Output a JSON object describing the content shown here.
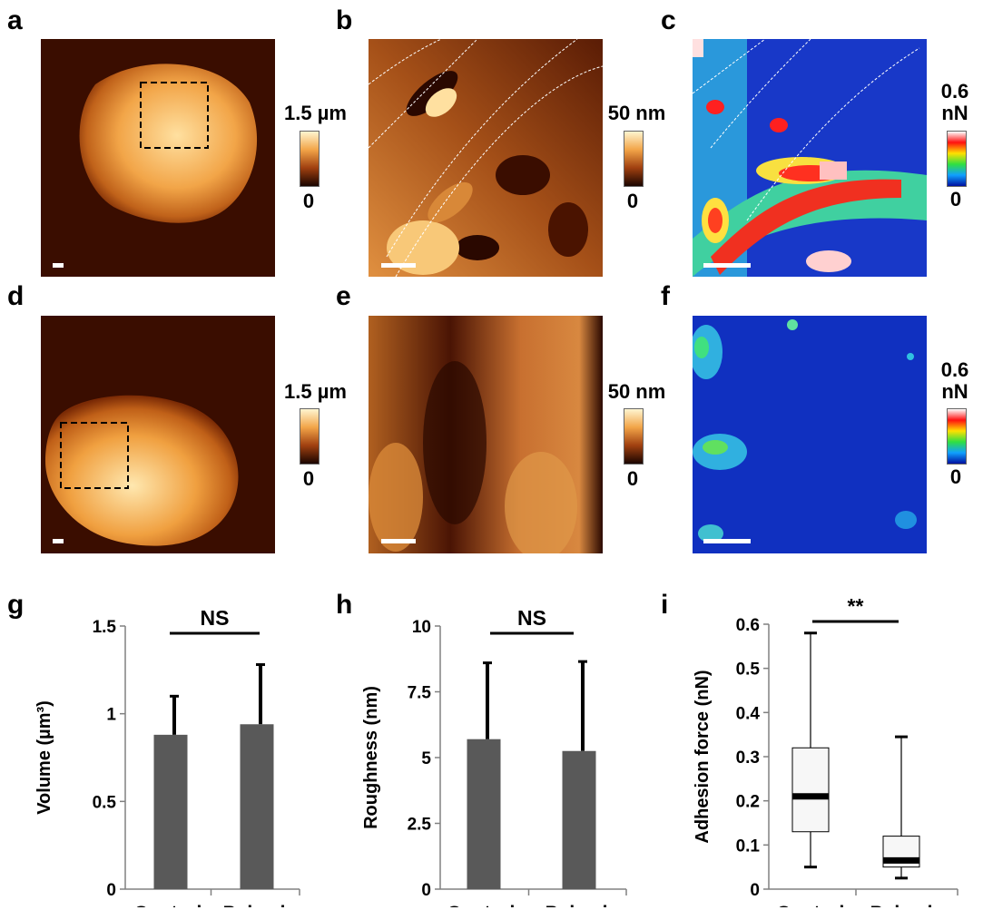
{
  "panel_labels": [
    "a",
    "b",
    "c",
    "d",
    "e",
    "f",
    "g",
    "h",
    "i"
  ],
  "colorbars": {
    "a": {
      "max": "1.5 µm",
      "min": "0"
    },
    "b": {
      "max": "50 nm",
      "min": "0"
    },
    "c": {
      "max_line1": "0.6",
      "max_line2": "nN",
      "min": "0"
    },
    "d": {
      "max": "1.5 µm",
      "min": "0"
    },
    "e": {
      "max": "50 nm",
      "min": "0"
    },
    "f": {
      "max_line1": "0.6",
      "max_line2": "nN",
      "min": "0"
    }
  },
  "colors": {
    "bar_fill": "#595959",
    "height_map_dark": "#3a0d00",
    "height_map_light": "#ffe7a8",
    "adhesion_low": "#1030c0",
    "adhesion_high": "#ff2020"
  },
  "chart_data": [
    {
      "panel": "g",
      "type": "bar",
      "categories": [
        "Control",
        "Pulsed"
      ],
      "values": [
        0.88,
        0.94
      ],
      "error_upper": [
        1.1,
        1.28
      ],
      "ylabel": "Volume (µm³)",
      "ylim": [
        0,
        1.5
      ],
      "yticks": [
        0,
        0.5,
        1,
        1.5
      ],
      "ytick_labels": [
        "0",
        "0.5",
        "1",
        "1.5"
      ],
      "significance": "NS"
    },
    {
      "panel": "h",
      "type": "bar",
      "categories": [
        "Control",
        "Pulsed"
      ],
      "values": [
        5.7,
        5.25
      ],
      "error_upper": [
        8.6,
        8.65
      ],
      "ylabel": "Roughness (nm)",
      "ylim": [
        0,
        10
      ],
      "yticks": [
        0,
        2.5,
        5,
        7.5,
        10
      ],
      "ytick_labels": [
        "0",
        "2.5",
        "5",
        "7.5",
        "10"
      ],
      "significance": "NS"
    },
    {
      "panel": "i",
      "type": "box",
      "categories": [
        "Control",
        "Pulsed"
      ],
      "boxes": [
        {
          "min": 0.05,
          "q1": 0.13,
          "median": 0.21,
          "q3": 0.32,
          "max": 0.58
        },
        {
          "min": 0.025,
          "q1": 0.05,
          "median": 0.065,
          "q3": 0.12,
          "max": 0.345
        }
      ],
      "ylabel": "Adhesion force (nN)",
      "ylim": [
        0,
        0.6
      ],
      "yticks": [
        0,
        0.1,
        0.2,
        0.3,
        0.4,
        0.5,
        0.6
      ],
      "ytick_labels": [
        "0",
        "0.1",
        "0.2",
        "0.3",
        "0.4",
        "0.5",
        "0.6"
      ],
      "significance": "**"
    }
  ]
}
